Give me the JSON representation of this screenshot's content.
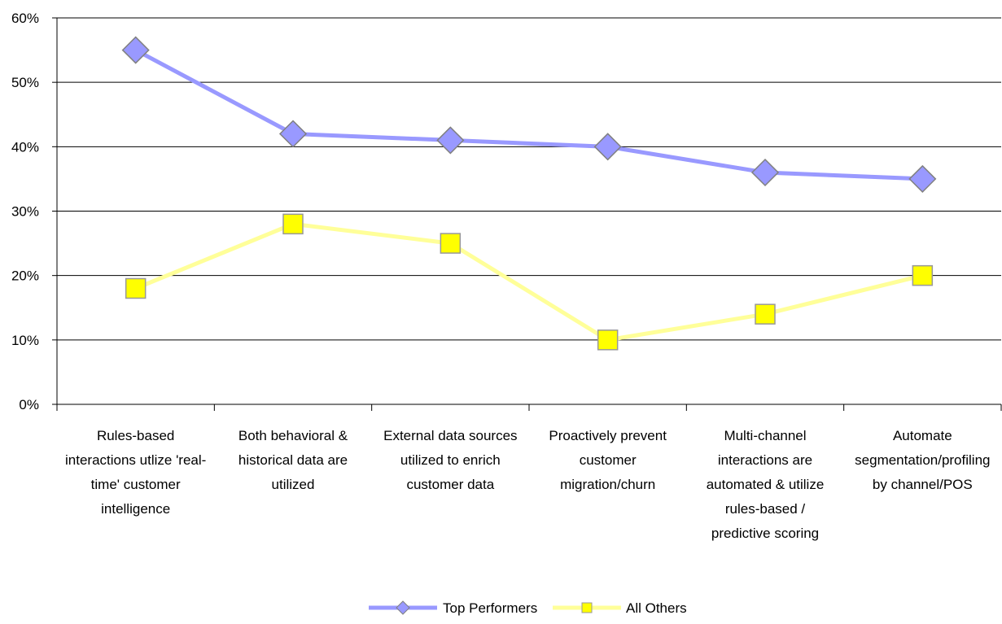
{
  "chart_data": {
    "type": "line",
    "title": "",
    "xlabel": "",
    "ylabel": "",
    "ylim": [
      0,
      60
    ],
    "yticks": [
      "0%",
      "10%",
      "20%",
      "30%",
      "40%",
      "50%",
      "60%"
    ],
    "grid": true,
    "legend": "bottom",
    "categories": [
      [
        "Rules-based",
        "interactions utlize 'real-",
        "time' customer",
        "intelligence"
      ],
      [
        "Both behavioral &",
        "historical data are",
        "utilized"
      ],
      [
        "External data sources",
        "utilized to enrich",
        "customer data"
      ],
      [
        "Proactively prevent",
        "customer",
        "migration/churn"
      ],
      [
        "Multi-channel",
        "interactions are",
        "automated & utilize",
        "rules-based /",
        "predictive scoring"
      ],
      [
        "Automate",
        "segmentation/profiling",
        "by channel/POS"
      ]
    ],
    "series": [
      {
        "name": "Top Performers",
        "values": [
          55,
          42,
          41,
          40,
          36,
          35
        ],
        "line_color": "#9999ff",
        "marker": "diamond",
        "marker_color": "#9999ff"
      },
      {
        "name": "All Others",
        "values": [
          18,
          28,
          25,
          10,
          14,
          20
        ],
        "line_color": "#ffff99",
        "marker": "square",
        "marker_color": "#ffff00"
      }
    ]
  }
}
